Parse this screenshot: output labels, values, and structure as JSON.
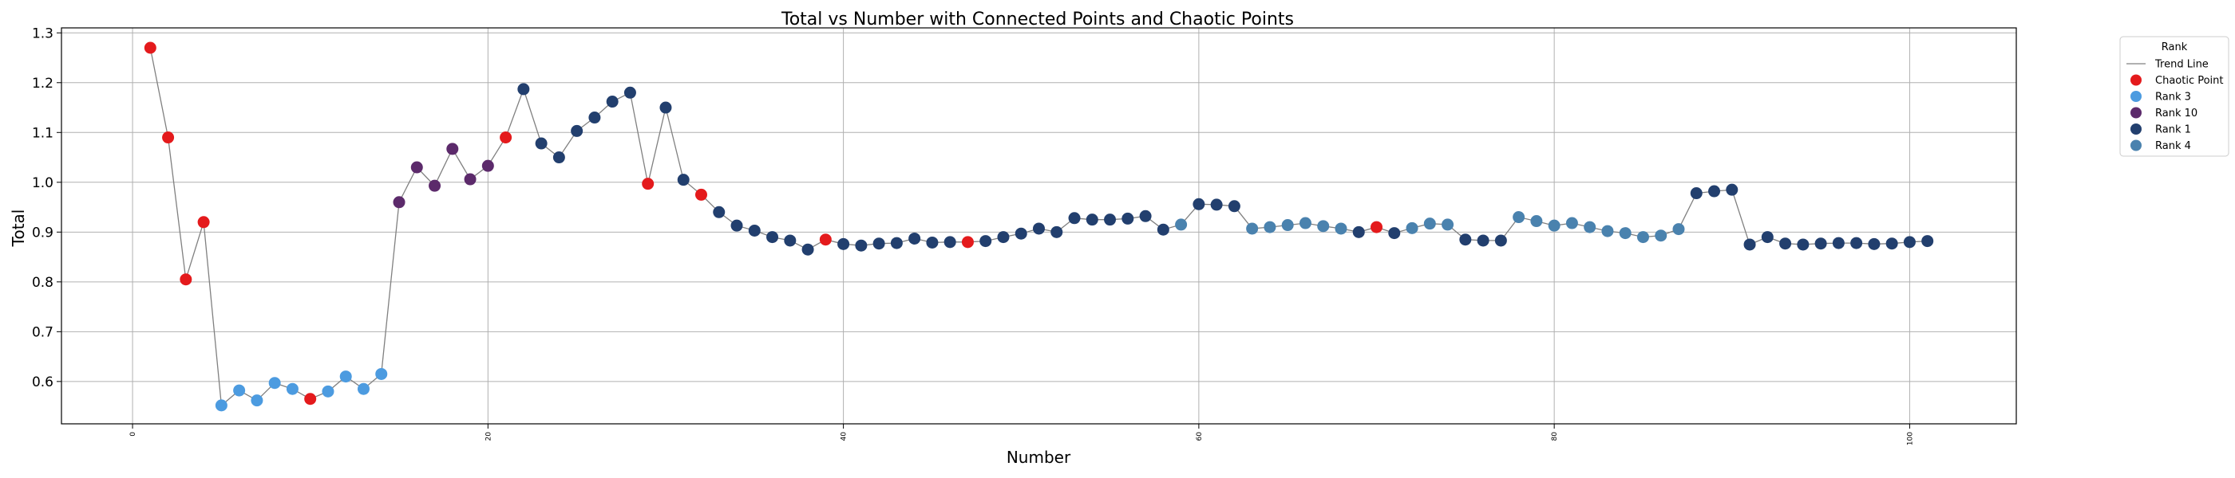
{
  "chart_data": {
    "type": "scatter",
    "title": "Total vs Number with Connected Points and Chaotic Points",
    "xlabel": "Number",
    "ylabel": "Total",
    "xlim": [
      -4,
      106
    ],
    "ylim": [
      0.515,
      1.31
    ],
    "xticks": [
      0,
      20,
      40,
      60,
      80,
      100
    ],
    "yticks": [
      0.6,
      0.7,
      0.8,
      0.9,
      1.0,
      1.1,
      1.2,
      1.3
    ],
    "ytick_labels": [
      "0.6",
      "0.7",
      "0.8",
      "0.9",
      "1.0",
      "1.1",
      "1.2",
      "1.3"
    ],
    "grid": true,
    "legend": {
      "title": "Rank",
      "position": "outside-top-right",
      "entries": [
        {
          "label": "Trend Line",
          "kind": "line",
          "color": "#808080"
        },
        {
          "label": "Chaotic Point",
          "kind": "marker",
          "color": "#e41a1c"
        },
        {
          "label": "Rank 3",
          "kind": "marker",
          "color": "#4c9be0"
        },
        {
          "label": "Rank 10",
          "kind": "marker",
          "color": "#5c2a6b"
        },
        {
          "label": "Rank 1",
          "kind": "marker",
          "color": "#223f6e"
        },
        {
          "label": "Rank 4",
          "kind": "marker",
          "color": "#4a82ae"
        }
      ]
    },
    "colors": {
      "Chaotic Point": "#e41a1c",
      "Rank 3": "#4c9be0",
      "Rank 10": "#5c2a6b",
      "Rank 1": "#223f6e",
      "Rank 4": "#4a82ae",
      "trend": "#808080"
    },
    "points": [
      {
        "x": 1,
        "y": 1.27,
        "g": "Chaotic Point"
      },
      {
        "x": 2,
        "y": 1.09,
        "g": "Chaotic Point"
      },
      {
        "x": 3,
        "y": 0.805,
        "g": "Chaotic Point"
      },
      {
        "x": 4,
        "y": 0.92,
        "g": "Chaotic Point"
      },
      {
        "x": 5,
        "y": 0.552,
        "g": "Rank 3"
      },
      {
        "x": 6,
        "y": 0.582,
        "g": "Rank 3"
      },
      {
        "x": 7,
        "y": 0.562,
        "g": "Rank 3"
      },
      {
        "x": 8,
        "y": 0.597,
        "g": "Rank 3"
      },
      {
        "x": 9,
        "y": 0.585,
        "g": "Rank 3"
      },
      {
        "x": 10,
        "y": 0.565,
        "g": "Chaotic Point"
      },
      {
        "x": 11,
        "y": 0.58,
        "g": "Rank 3"
      },
      {
        "x": 12,
        "y": 0.61,
        "g": "Rank 3"
      },
      {
        "x": 13,
        "y": 0.585,
        "g": "Rank 3"
      },
      {
        "x": 14,
        "y": 0.615,
        "g": "Rank 3"
      },
      {
        "x": 15,
        "y": 0.96,
        "g": "Rank 10"
      },
      {
        "x": 16,
        "y": 1.03,
        "g": "Rank 10"
      },
      {
        "x": 17,
        "y": 0.993,
        "g": "Rank 10"
      },
      {
        "x": 18,
        "y": 1.067,
        "g": "Rank 10"
      },
      {
        "x": 19,
        "y": 1.006,
        "g": "Rank 10"
      },
      {
        "x": 20,
        "y": 1.033,
        "g": "Rank 10"
      },
      {
        "x": 21,
        "y": 1.09,
        "g": "Chaotic Point"
      },
      {
        "x": 22,
        "y": 1.187,
        "g": "Rank 1"
      },
      {
        "x": 23,
        "y": 1.078,
        "g": "Rank 1"
      },
      {
        "x": 24,
        "y": 1.05,
        "g": "Rank 1"
      },
      {
        "x": 25,
        "y": 1.103,
        "g": "Rank 1"
      },
      {
        "x": 26,
        "y": 1.13,
        "g": "Rank 1"
      },
      {
        "x": 27,
        "y": 1.162,
        "g": "Rank 1"
      },
      {
        "x": 28,
        "y": 1.18,
        "g": "Rank 1"
      },
      {
        "x": 29,
        "y": 0.997,
        "g": "Chaotic Point"
      },
      {
        "x": 30,
        "y": 1.15,
        "g": "Rank 1"
      },
      {
        "x": 31,
        "y": 1.005,
        "g": "Rank 1"
      },
      {
        "x": 32,
        "y": 0.975,
        "g": "Chaotic Point"
      },
      {
        "x": 33,
        "y": 0.94,
        "g": "Rank 1"
      },
      {
        "x": 34,
        "y": 0.913,
        "g": "Rank 1"
      },
      {
        "x": 35,
        "y": 0.903,
        "g": "Rank 1"
      },
      {
        "x": 36,
        "y": 0.89,
        "g": "Rank 1"
      },
      {
        "x": 37,
        "y": 0.883,
        "g": "Rank 1"
      },
      {
        "x": 38,
        "y": 0.865,
        "g": "Rank 1"
      },
      {
        "x": 39,
        "y": 0.885,
        "g": "Chaotic Point"
      },
      {
        "x": 40,
        "y": 0.876,
        "g": "Rank 1"
      },
      {
        "x": 41,
        "y": 0.873,
        "g": "Rank 1"
      },
      {
        "x": 42,
        "y": 0.877,
        "g": "Rank 1"
      },
      {
        "x": 43,
        "y": 0.878,
        "g": "Rank 1"
      },
      {
        "x": 44,
        "y": 0.887,
        "g": "Rank 1"
      },
      {
        "x": 45,
        "y": 0.879,
        "g": "Rank 1"
      },
      {
        "x": 46,
        "y": 0.88,
        "g": "Rank 1"
      },
      {
        "x": 47,
        "y": 0.88,
        "g": "Chaotic Point"
      },
      {
        "x": 48,
        "y": 0.882,
        "g": "Rank 1"
      },
      {
        "x": 49,
        "y": 0.89,
        "g": "Rank 1"
      },
      {
        "x": 50,
        "y": 0.897,
        "g": "Rank 1"
      },
      {
        "x": 51,
        "y": 0.907,
        "g": "Rank 1"
      },
      {
        "x": 52,
        "y": 0.9,
        "g": "Rank 1"
      },
      {
        "x": 53,
        "y": 0.928,
        "g": "Rank 1"
      },
      {
        "x": 54,
        "y": 0.925,
        "g": "Rank 1"
      },
      {
        "x": 55,
        "y": 0.925,
        "g": "Rank 1"
      },
      {
        "x": 56,
        "y": 0.927,
        "g": "Rank 1"
      },
      {
        "x": 57,
        "y": 0.932,
        "g": "Rank 1"
      },
      {
        "x": 58,
        "y": 0.905,
        "g": "Rank 1"
      },
      {
        "x": 59,
        "y": 0.915,
        "g": "Rank 4"
      },
      {
        "x": 60,
        "y": 0.956,
        "g": "Rank 1"
      },
      {
        "x": 61,
        "y": 0.955,
        "g": "Rank 1"
      },
      {
        "x": 62,
        "y": 0.952,
        "g": "Rank 1"
      },
      {
        "x": 63,
        "y": 0.907,
        "g": "Rank 4"
      },
      {
        "x": 64,
        "y": 0.91,
        "g": "Rank 4"
      },
      {
        "x": 65,
        "y": 0.914,
        "g": "Rank 4"
      },
      {
        "x": 66,
        "y": 0.918,
        "g": "Rank 4"
      },
      {
        "x": 67,
        "y": 0.912,
        "g": "Rank 4"
      },
      {
        "x": 68,
        "y": 0.907,
        "g": "Rank 4"
      },
      {
        "x": 69,
        "y": 0.9,
        "g": "Rank 1"
      },
      {
        "x": 70,
        "y": 0.91,
        "g": "Chaotic Point"
      },
      {
        "x": 71,
        "y": 0.898,
        "g": "Rank 1"
      },
      {
        "x": 72,
        "y": 0.908,
        "g": "Rank 4"
      },
      {
        "x": 73,
        "y": 0.917,
        "g": "Rank 4"
      },
      {
        "x": 74,
        "y": 0.915,
        "g": "Rank 4"
      },
      {
        "x": 75,
        "y": 0.885,
        "g": "Rank 1"
      },
      {
        "x": 76,
        "y": 0.883,
        "g": "Rank 1"
      },
      {
        "x": 77,
        "y": 0.883,
        "g": "Rank 1"
      },
      {
        "x": 78,
        "y": 0.93,
        "g": "Rank 4"
      },
      {
        "x": 79,
        "y": 0.922,
        "g": "Rank 4"
      },
      {
        "x": 80,
        "y": 0.913,
        "g": "Rank 4"
      },
      {
        "x": 81,
        "y": 0.918,
        "g": "Rank 4"
      },
      {
        "x": 82,
        "y": 0.91,
        "g": "Rank 4"
      },
      {
        "x": 83,
        "y": 0.902,
        "g": "Rank 4"
      },
      {
        "x": 84,
        "y": 0.898,
        "g": "Rank 4"
      },
      {
        "x": 85,
        "y": 0.89,
        "g": "Rank 4"
      },
      {
        "x": 86,
        "y": 0.893,
        "g": "Rank 4"
      },
      {
        "x": 87,
        "y": 0.906,
        "g": "Rank 4"
      },
      {
        "x": 88,
        "y": 0.978,
        "g": "Rank 1"
      },
      {
        "x": 89,
        "y": 0.982,
        "g": "Rank 1"
      },
      {
        "x": 90,
        "y": 0.985,
        "g": "Rank 1"
      },
      {
        "x": 91,
        "y": 0.875,
        "g": "Rank 1"
      },
      {
        "x": 92,
        "y": 0.89,
        "g": "Rank 1"
      },
      {
        "x": 93,
        "y": 0.877,
        "g": "Rank 1"
      },
      {
        "x": 94,
        "y": 0.875,
        "g": "Rank 1"
      },
      {
        "x": 95,
        "y": 0.877,
        "g": "Rank 1"
      },
      {
        "x": 96,
        "y": 0.878,
        "g": "Rank 1"
      },
      {
        "x": 97,
        "y": 0.878,
        "g": "Rank 1"
      },
      {
        "x": 98,
        "y": 0.876,
        "g": "Rank 1"
      },
      {
        "x": 99,
        "y": 0.877,
        "g": "Rank 1"
      },
      {
        "x": 100,
        "y": 0.88,
        "g": "Rank 1"
      },
      {
        "x": 101,
        "y": 0.882,
        "g": "Rank 1"
      }
    ]
  }
}
